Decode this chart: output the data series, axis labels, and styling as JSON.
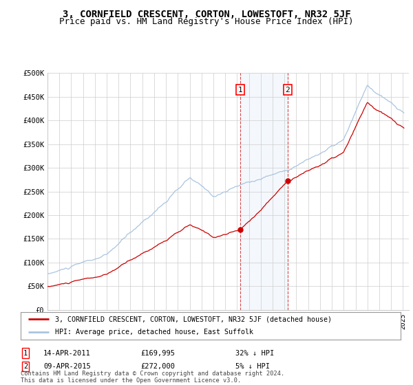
{
  "title": "3, CORNFIELD CRESCENT, CORTON, LOWESTOFT, NR32 5JF",
  "subtitle": "Price paid vs. HM Land Registry's House Price Index (HPI)",
  "ylim": [
    0,
    500000
  ],
  "yticks": [
    0,
    50000,
    100000,
    150000,
    200000,
    250000,
    300000,
    350000,
    400000,
    450000,
    500000
  ],
  "ytick_labels": [
    "£0",
    "£50K",
    "£100K",
    "£150K",
    "£200K",
    "£250K",
    "£300K",
    "£350K",
    "£400K",
    "£450K",
    "£500K"
  ],
  "xlim_start": 1995.0,
  "xlim_end": 2025.5,
  "background_color": "#ffffff",
  "plot_bg_color": "#ffffff",
  "grid_color": "#cccccc",
  "sale1_date": 2011.28,
  "sale1_price": 169995,
  "sale1_label": "1",
  "sale1_hpi_pct": "32% ↓ HPI",
  "sale1_date_str": "14-APR-2011",
  "sale2_date": 2015.27,
  "sale2_price": 272000,
  "sale2_label": "2",
  "sale2_hpi_pct": "5% ↓ HPI",
  "sale2_date_str": "09-APR-2015",
  "hpi_color": "#aac4e0",
  "price_color": "#cc0000",
  "legend_label1": "3, CORNFIELD CRESCENT, CORTON, LOWESTOFT, NR32 5JF (detached house)",
  "legend_label2": "HPI: Average price, detached house, East Suffolk",
  "footer": "Contains HM Land Registry data © Crown copyright and database right 2024.\nThis data is licensed under the Open Government Licence v3.0.",
  "title_fontsize": 10,
  "subtitle_fontsize": 9,
  "shaded_color": "#ddeeff"
}
